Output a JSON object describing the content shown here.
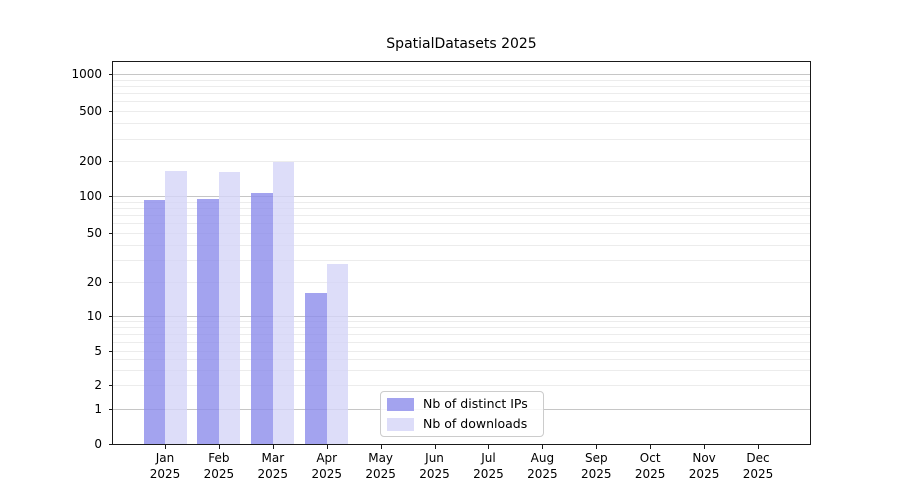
{
  "title": "SpatialDatasets 2025",
  "colors": {
    "ips": "rgba(140,140,235,0.8)",
    "downloads": "rgba(212,212,248,0.8)",
    "major_grid": "#c6c6c6",
    "minor_grid": "#ececec",
    "spine": "#1a1a1a",
    "text": "#000000"
  },
  "legend": {
    "items": [
      {
        "label": "Nb of distinct IPs",
        "swatch": "ips"
      },
      {
        "label": "Nb of downloads",
        "swatch": "downloads"
      }
    ]
  },
  "chart_data": {
    "type": "bar",
    "title": "SpatialDatasets 2025",
    "categories": [
      "Jan 2025",
      "Feb 2025",
      "Mar 2025",
      "Apr 2025",
      "May 2025",
      "Jun 2025",
      "Jul 2025",
      "Aug 2025",
      "Sep 2025",
      "Oct 2025",
      "Nov 2025",
      "Dec 2025"
    ],
    "series": [
      {
        "name": "Nb of distinct IPs",
        "color_key": "ips",
        "values": [
          93,
          95,
          106,
          16,
          0,
          0,
          0,
          0,
          0,
          0,
          0,
          0
        ]
      },
      {
        "name": "Nb of downloads",
        "color_key": "downloads",
        "values": [
          165,
          162,
          195,
          28,
          0,
          0,
          0,
          0,
          0,
          0,
          0,
          0
        ]
      }
    ],
    "yscale": "symlog",
    "yticks": [
      0,
      1,
      2,
      5,
      10,
      20,
      50,
      100,
      200,
      500,
      1000
    ],
    "ylim": [
      0,
      1250
    ],
    "xlabel": "",
    "ylabel": "",
    "grid": "horizontal major and minor",
    "legend_position": "lower center"
  }
}
